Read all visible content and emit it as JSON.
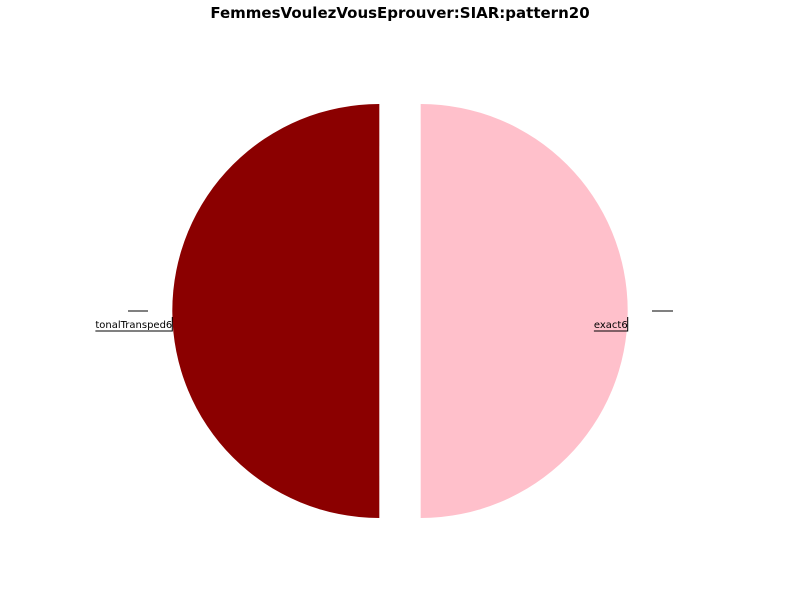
{
  "chart_data": {
    "type": "pie",
    "title": "FemmesVoulezVousEprouver:SIAR:pattern20",
    "start_angle_deg": 90,
    "direction": "counterclockwise",
    "legend": "none",
    "slices": [
      {
        "label": "tonalTransped6",
        "value": 50,
        "color": "#8b0000",
        "explode": 0.1
      },
      {
        "label": "exact6",
        "value": 50,
        "color": "#ffc0cb",
        "explode": 0.1
      }
    ]
  }
}
